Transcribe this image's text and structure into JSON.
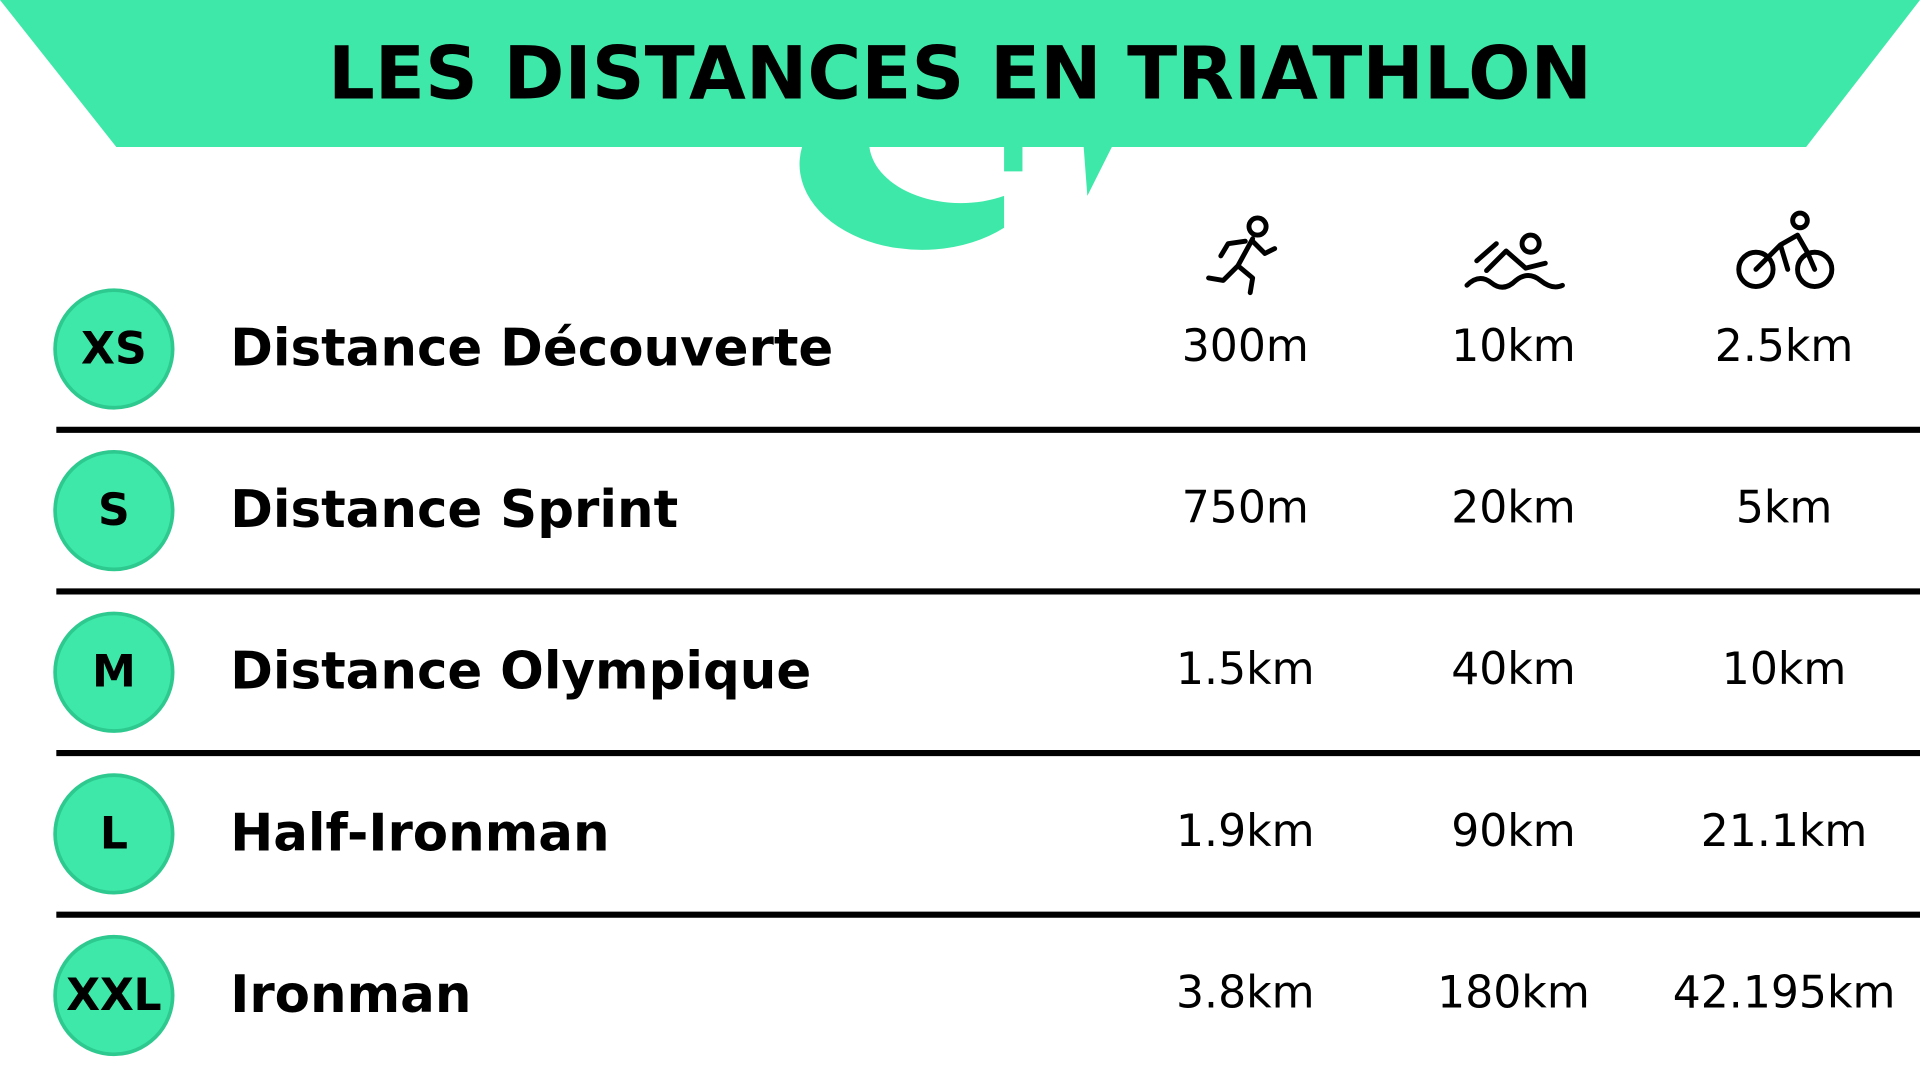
{
  "title": "LES DISTANCES EN TRIATHLON",
  "rows": [
    {
      "badge": "XS",
      "name": "Distance Découverte",
      "values": [
        "300m",
        "10km",
        "2.5km"
      ]
    },
    {
      "badge": "S",
      "name": "Distance Sprint",
      "values": [
        "750m",
        "20km",
        "5km"
      ]
    },
    {
      "badge": "M",
      "name": "Distance Olympique",
      "values": [
        "1.5km",
        "40km",
        "10km"
      ]
    },
    {
      "badge": "L",
      "name": "Half-Ironman",
      "values": [
        "1.9km",
        "90km",
        "21.1km"
      ]
    },
    {
      "badge": "XXL",
      "name": "Ironman",
      "values": [
        "3.8km",
        "180km",
        "42.195km"
      ]
    }
  ]
}
